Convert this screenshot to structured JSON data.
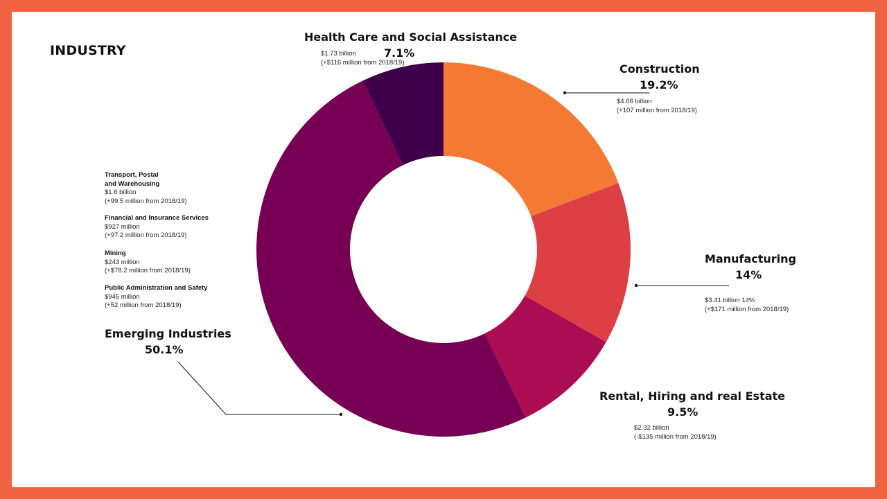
{
  "page": {
    "background_color": "#EF6340",
    "panel_color": "#FFFFFF"
  },
  "chart_data": {
    "type": "pie",
    "title": "INDUSTRY",
    "categories": [
      "Construction",
      "Manufacturing",
      "Rental, Hiring and real Estate",
      "Emerging Industries",
      "Health Care and Social Assistance"
    ],
    "values": [
      19.2,
      14,
      9.5,
      50.1,
      7.1
    ],
    "colors": [
      "#F47A33",
      "#DC4045",
      "#AC0C51",
      "#770054",
      "#3E004B"
    ],
    "donut": true,
    "legend": "none",
    "segments": [
      {
        "name": "Construction",
        "percent_label": "19.2%",
        "value_text": "$4.66 billion",
        "change_text": "(+107 million from 2018/19)"
      },
      {
        "name": "Manufacturing",
        "percent_label": "14%",
        "value_text": "$3.41 billion 14%",
        "change_text": "(+$171 million from 2018/19)"
      },
      {
        "name": "Rental, Hiring and real Estate",
        "percent_label": "9.5%",
        "value_text": "$2.32 billion",
        "change_text": "(-$135 million from 2018/19)"
      },
      {
        "name": "Emerging Industries",
        "percent_label": "50.1%"
      },
      {
        "name": "Health Care and Social Assistance",
        "percent_label": "7.1%",
        "value_text": "$1.73 billion",
        "change_text": "(+$116 million from 2018/19)"
      }
    ],
    "emerging_breakdown": [
      {
        "name_line1": "Transport, Postal",
        "name_line2": "and Warehousing",
        "value_text": "$1.6 billion",
        "change_text": "(+99.5 million from 2018/19)"
      },
      {
        "name_line1": "Financial and Insurance Services",
        "name_line2": "",
        "value_text": "$927 million",
        "change_text": "(+97.2 million from 2018/19)"
      },
      {
        "name_line1": "Mining",
        "name_line2": "",
        "value_text": "$243 million",
        "change_text": "(+$78.2 million from 2018/19)"
      },
      {
        "name_line1": "Public Administration and Safety",
        "name_line2": "",
        "value_text": "$945 million",
        "change_text": "(+52 million from 2018/19)"
      }
    ]
  }
}
